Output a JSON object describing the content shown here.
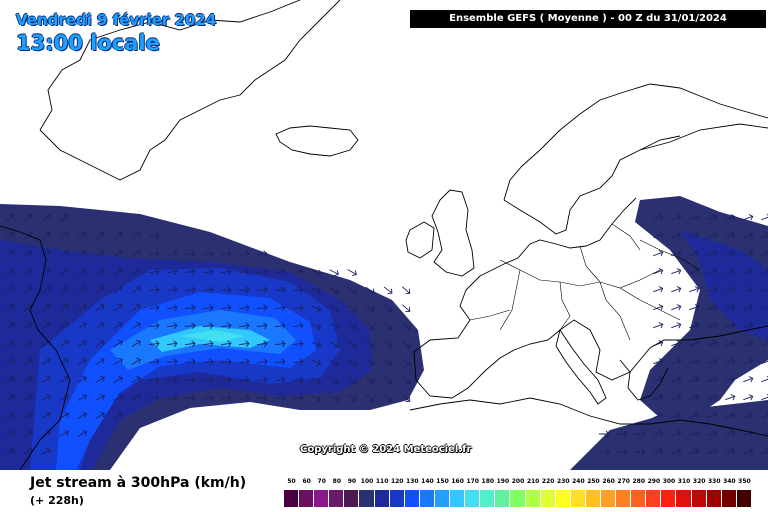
{
  "header": {
    "date": "Vendredi 9 février 2024",
    "local_time": "13:00 locale",
    "model_run": "Ensemble GEFS  ( Moyenne )  -  00 Z du 31/01/2024"
  },
  "map": {
    "copyright": "Copyright © 2024 Meteociel.fr",
    "parameter": "Jet stream à 300hPa (km/h)",
    "lead_time": "(+ 228h)",
    "colors": {
      "land_outline": "#000000",
      "arrow": "#1a2060"
    }
  },
  "legend": {
    "unit": "km/h",
    "levels": [
      "50",
      "60",
      "70",
      "80",
      "90",
      "100",
      "110",
      "120",
      "130",
      "140",
      "150",
      "160",
      "170",
      "180",
      "190",
      "200",
      "210",
      "220",
      "230",
      "240",
      "250",
      "260",
      "270",
      "280",
      "290",
      "300",
      "310",
      "320",
      "330",
      "340",
      "350"
    ],
    "colors": [
      "#4a0040",
      "#6a1060",
      "#8a1888",
      "#6a1a6a",
      "#4a1a50",
      "#2a3070",
      "#1e2a9a",
      "#1838c8",
      "#1050ff",
      "#1a78ff",
      "#22a0ff",
      "#30c8ff",
      "#40e0f0",
      "#50f0c8",
      "#60f0a0",
      "#80ff60",
      "#b0ff40",
      "#e0ff30",
      "#ffff20",
      "#ffe020",
      "#ffc020",
      "#ffa020",
      "#ff8020",
      "#ff6020",
      "#ff4020",
      "#ff2010",
      "#e01010",
      "#c00808",
      "#a00000",
      "#700000",
      "#400000"
    ]
  }
}
